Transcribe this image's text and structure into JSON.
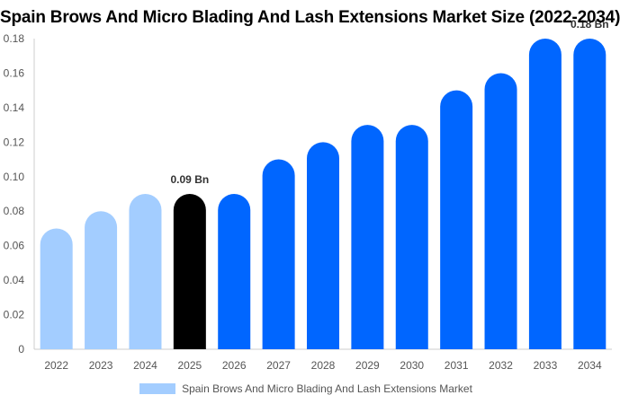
{
  "chart_data": {
    "type": "bar",
    "title": "Spain Brows And Micro Blading And Lash Extensions Market Size (2022-2034)",
    "categories": [
      "2022",
      "2023",
      "2024",
      "2025",
      "2026",
      "2027",
      "2028",
      "2029",
      "2030",
      "2031",
      "2032",
      "2033",
      "2034"
    ],
    "series": [
      {
        "name": "Spain Brows And Micro Blading And Lash Extensions Market",
        "values": [
          0.07,
          0.08,
          0.09,
          0.09,
          0.09,
          0.11,
          0.12,
          0.13,
          0.13,
          0.15,
          0.16,
          0.18,
          0.18
        ]
      }
    ],
    "data_labels": [
      {
        "category": "2025",
        "text": "0.09 Bn"
      },
      {
        "category": "2034",
        "text": "0.18 Bn"
      }
    ],
    "y_ticks": [
      "0",
      "0.02",
      "0.04",
      "0.06",
      "0.08",
      "0.10",
      "0.12",
      "0.14",
      "0.16",
      "0.18"
    ],
    "ylim": [
      0,
      0.18
    ],
    "xlabel": "",
    "ylabel": "",
    "grid": false,
    "legend_position": "bottom",
    "colors": {
      "history": "#a3cdff",
      "current": "#000000",
      "forecast": "#0066ff",
      "legend_swatch": "#a3cdff"
    },
    "bar_color_groups": [
      "history",
      "history",
      "history",
      "current",
      "forecast",
      "forecast",
      "forecast",
      "forecast",
      "forecast",
      "forecast",
      "forecast",
      "forecast",
      "forecast"
    ]
  }
}
